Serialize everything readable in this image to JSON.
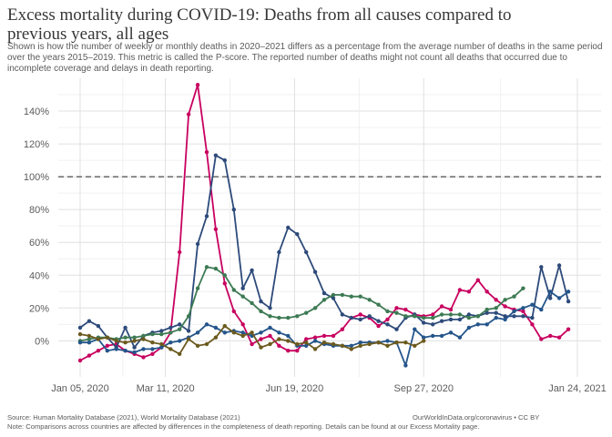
{
  "title": "Excess mortality during COVID-19: Deaths from all causes compared to previous years, all ages",
  "subtitle": "Shown is how the number of weekly or monthly deaths in 2020–2021 differs as a percentage from the average number of deaths in the same period over the years 2015–2019. This metric is called the P-score. The reported number of deaths might not count all deaths that occurred due to incomplete coverage and delays in death reporting.",
  "footer": {
    "source": "Source: Human Mortality Database (2021), World Mortality Database (2021)",
    "credit": "OurWorldInData.org/coronavirus • CC BY",
    "note": "Note: Comparisons across countries are affected by differences in the completeness of death reporting. Details can be found at our Excess Mortality page."
  },
  "chart_data": {
    "type": "line",
    "title": "",
    "xlabel": "",
    "ylabel": "",
    "x_ticks": [
      "Jan 05, 2020",
      "Mar 11, 2020",
      "Jun 19, 2020",
      "Sep 27, 2020",
      "Jan 24, 2021"
    ],
    "x_range": [
      "2020-01-05",
      "2021-01-24"
    ],
    "y_ticks": [
      "0%",
      "20%",
      "40%",
      "60%",
      "80%",
      "100%",
      "120%",
      "140%"
    ],
    "ylim": [
      -22,
      160
    ],
    "reference_line": {
      "value": 100,
      "style": "dashed"
    },
    "grid": true,
    "legend": "none",
    "series": [
      {
        "color": "#c8005f",
        "x": [
          "2020-01-05",
          "2020-01-12",
          "2020-01-19",
          "2020-01-26",
          "2020-02-02",
          "2020-02-09",
          "2020-02-16",
          "2020-02-23",
          "2020-03-01",
          "2020-03-08",
          "2020-03-15",
          "2020-03-22",
          "2020-03-29",
          "2020-04-05",
          "2020-04-12",
          "2020-04-19",
          "2020-04-26",
          "2020-05-03",
          "2020-05-10",
          "2020-05-17",
          "2020-05-24",
          "2020-05-31",
          "2020-06-07",
          "2020-06-14",
          "2020-06-21",
          "2020-06-28",
          "2020-07-05",
          "2020-07-12",
          "2020-07-19",
          "2020-07-26",
          "2020-08-02",
          "2020-08-09",
          "2020-08-16",
          "2020-08-23",
          "2020-08-30",
          "2020-09-06",
          "2020-09-13",
          "2020-09-20",
          "2020-09-27",
          "2020-10-04",
          "2020-10-11",
          "2020-10-18",
          "2020-10-25",
          "2020-11-01",
          "2020-11-08",
          "2020-11-15",
          "2020-11-22",
          "2020-11-29",
          "2020-12-06",
          "2020-12-13",
          "2020-12-20",
          "2020-12-27",
          "2021-01-03",
          "2021-01-10",
          "2021-01-17"
        ],
        "values": [
          -12,
          -9,
          -6,
          -3,
          -2,
          -6,
          -8,
          -10,
          -8,
          -4,
          5,
          54,
          138,
          156,
          115,
          68,
          35,
          18,
          10,
          -2,
          1,
          3,
          -3,
          -6,
          -6,
          1,
          2,
          3,
          3,
          7,
          14,
          16,
          14,
          9,
          13,
          20,
          19,
          16,
          15,
          16,
          21,
          19,
          31,
          30,
          37,
          30,
          25,
          21,
          19,
          18,
          10,
          1,
          3,
          2,
          7
        ]
      },
      {
        "color": "#2d4a7a",
        "x": [
          "2020-01-05",
          "2020-01-12",
          "2020-01-19",
          "2020-01-26",
          "2020-02-02",
          "2020-02-09",
          "2020-02-16",
          "2020-02-23",
          "2020-03-01",
          "2020-03-08",
          "2020-03-15",
          "2020-03-22",
          "2020-03-29",
          "2020-04-05",
          "2020-04-12",
          "2020-04-19",
          "2020-04-26",
          "2020-05-03",
          "2020-05-10",
          "2020-05-17",
          "2020-05-24",
          "2020-05-31",
          "2020-06-07",
          "2020-06-14",
          "2020-06-21",
          "2020-06-28",
          "2020-07-05",
          "2020-07-12",
          "2020-07-19",
          "2020-07-26",
          "2020-08-02",
          "2020-08-09",
          "2020-08-16",
          "2020-08-23",
          "2020-08-30",
          "2020-09-06",
          "2020-09-13",
          "2020-09-20",
          "2020-09-27",
          "2020-10-04",
          "2020-10-11",
          "2020-10-18",
          "2020-10-25",
          "2020-11-01",
          "2020-11-08",
          "2020-11-15",
          "2020-11-22",
          "2020-11-29",
          "2020-12-06",
          "2020-12-13",
          "2020-12-20",
          "2020-12-27",
          "2021-01-03",
          "2021-01-10",
          "2021-01-17"
        ],
        "values": [
          8,
          12,
          9,
          2,
          -4,
          8,
          -4,
          3,
          5,
          6,
          8,
          10,
          6,
          59,
          76,
          113,
          110,
          80,
          32,
          43,
          24,
          20,
          54,
          69,
          65,
          54,
          42,
          29,
          26,
          16,
          14,
          13,
          15,
          12,
          10,
          7,
          14,
          16,
          11,
          10,
          12,
          13,
          13,
          16,
          15,
          17,
          17,
          15,
          15,
          15,
          14,
          45,
          26,
          46,
          24
        ]
      },
      {
        "color": "#3d7a54",
        "x": [
          "2020-01-05",
          "2020-01-12",
          "2020-01-19",
          "2020-01-26",
          "2020-02-02",
          "2020-02-09",
          "2020-02-16",
          "2020-02-23",
          "2020-03-01",
          "2020-03-08",
          "2020-03-15",
          "2020-03-22",
          "2020-03-29",
          "2020-04-05",
          "2020-04-12",
          "2020-04-19",
          "2020-04-26",
          "2020-05-03",
          "2020-05-10",
          "2020-05-17",
          "2020-05-24",
          "2020-05-31",
          "2020-06-07",
          "2020-06-14",
          "2020-06-21",
          "2020-06-28",
          "2020-07-05",
          "2020-07-12",
          "2020-07-19",
          "2020-07-26",
          "2020-08-02",
          "2020-08-09",
          "2020-08-16",
          "2020-08-23",
          "2020-08-30",
          "2020-09-06",
          "2020-09-13",
          "2020-09-20",
          "2020-09-27",
          "2020-10-04",
          "2020-10-11",
          "2020-10-18",
          "2020-10-25",
          "2020-11-01",
          "2020-11-08",
          "2020-11-15",
          "2020-11-22",
          "2020-11-29",
          "2020-12-06",
          "2020-12-13"
        ],
        "values": [
          0,
          1,
          2,
          2,
          1,
          2,
          2,
          3,
          4,
          4,
          5,
          7,
          15,
          32,
          45,
          44,
          40,
          31,
          27,
          23,
          18,
          15,
          14,
          14,
          15,
          17,
          20,
          25,
          28,
          28,
          27,
          27,
          25,
          22,
          18,
          17,
          15,
          15,
          14,
          14,
          16,
          16,
          16,
          14,
          15,
          19,
          20,
          25,
          27,
          32
        ]
      },
      {
        "color": "#24558b",
        "x": [
          "2020-01-05",
          "2020-01-12",
          "2020-01-19",
          "2020-01-26",
          "2020-02-02",
          "2020-02-09",
          "2020-02-16",
          "2020-02-23",
          "2020-03-01",
          "2020-03-08",
          "2020-03-15",
          "2020-03-22",
          "2020-03-29",
          "2020-04-05",
          "2020-04-12",
          "2020-04-19",
          "2020-04-26",
          "2020-05-03",
          "2020-05-10",
          "2020-05-17",
          "2020-05-24",
          "2020-05-31",
          "2020-06-07",
          "2020-06-14",
          "2020-06-21",
          "2020-06-28",
          "2020-07-05",
          "2020-07-12",
          "2020-07-19",
          "2020-07-26",
          "2020-08-02",
          "2020-08-09",
          "2020-08-16",
          "2020-08-23",
          "2020-08-30",
          "2020-09-06",
          "2020-09-13",
          "2020-09-20",
          "2020-09-27",
          "2020-10-04",
          "2020-10-11",
          "2020-10-18",
          "2020-10-25",
          "2020-11-01",
          "2020-11-08",
          "2020-11-15",
          "2020-11-22",
          "2020-11-29",
          "2020-12-06",
          "2020-12-13",
          "2020-12-20",
          "2020-12-27",
          "2021-01-03",
          "2021-01-10",
          "2021-01-17"
        ],
        "values": [
          -1,
          -1,
          1,
          -6,
          -5,
          -6,
          -7,
          -5,
          -5,
          -4,
          -1,
          0,
          2,
          5,
          10,
          8,
          5,
          6,
          5,
          3,
          5,
          8,
          5,
          3,
          -3,
          -3,
          0,
          -2,
          -3,
          -3,
          -3,
          -1,
          -1,
          -1,
          0,
          -1,
          -15,
          7,
          2,
          3,
          3,
          5,
          2,
          8,
          10,
          10,
          14,
          13,
          18,
          20,
          22,
          19,
          30,
          26,
          30
        ]
      },
      {
        "color": "#6b5a1e",
        "x": [
          "2020-01-05",
          "2020-01-12",
          "2020-01-19",
          "2020-01-26",
          "2020-02-02",
          "2020-02-09",
          "2020-02-16",
          "2020-02-23",
          "2020-03-01",
          "2020-03-08",
          "2020-03-15",
          "2020-03-22",
          "2020-03-29",
          "2020-04-05",
          "2020-04-12",
          "2020-04-19",
          "2020-04-26",
          "2020-05-03",
          "2020-05-10",
          "2020-05-17",
          "2020-05-24",
          "2020-05-31",
          "2020-06-07",
          "2020-06-14",
          "2020-06-21",
          "2020-06-28",
          "2020-07-05",
          "2020-07-12",
          "2020-07-19",
          "2020-07-26",
          "2020-08-02",
          "2020-08-09",
          "2020-08-16",
          "2020-08-23",
          "2020-08-30",
          "2020-09-06",
          "2020-09-13",
          "2020-09-20",
          "2020-09-27"
        ],
        "values": [
          4,
          3,
          1,
          2,
          0,
          -1,
          0,
          1,
          -1,
          -2,
          -5,
          -8,
          1,
          -3,
          -2,
          2,
          9,
          5,
          3,
          5,
          -4,
          -2,
          1,
          0,
          -2,
          -1,
          -5,
          -1,
          -2,
          -3,
          -5,
          -3,
          -2,
          -1,
          -3,
          -1,
          -1,
          -3,
          0
        ]
      }
    ]
  }
}
